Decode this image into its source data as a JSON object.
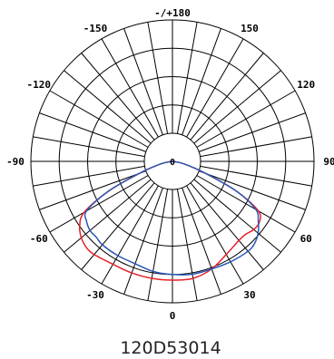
{
  "chart_data": {
    "type": "polar",
    "title": "",
    "caption": "120D53014",
    "center_label": "0",
    "angle_labels": [
      {
        "angle": 180,
        "text": "-/+180"
      },
      {
        "angle": 150,
        "text": "150"
      },
      {
        "angle": 120,
        "text": "120"
      },
      {
        "angle": 90,
        "text": "90"
      },
      {
        "angle": 60,
        "text": "60"
      },
      {
        "angle": 30,
        "text": "30"
      },
      {
        "angle": 0,
        "text": "0"
      },
      {
        "angle": -30,
        "text": "-30"
      },
      {
        "angle": -60,
        "text": "-60"
      },
      {
        "angle": -90,
        "text": "-90"
      },
      {
        "angle": -120,
        "text": "-120"
      },
      {
        "angle": -150,
        "text": "-150"
      }
    ],
    "rings": 5,
    "spoke_step_deg": 10,
    "r_range": [
      0,
      1
    ],
    "series": [
      {
        "color": "#e8202a",
        "points": [
          {
            "angle": -78,
            "r": 0.08
          },
          {
            "angle": -70,
            "r": 0.25
          },
          {
            "angle": -65,
            "r": 0.5
          },
          {
            "angle": -60,
            "r": 0.72
          },
          {
            "angle": -55,
            "r": 0.8
          },
          {
            "angle": -50,
            "r": 0.84
          },
          {
            "angle": -45,
            "r": 0.86
          },
          {
            "angle": -40,
            "r": 0.86
          },
          {
            "angle": -30,
            "r": 0.84
          },
          {
            "angle": -20,
            "r": 0.84
          },
          {
            "angle": -10,
            "r": 0.84
          },
          {
            "angle": 0,
            "r": 0.84
          },
          {
            "angle": 10,
            "r": 0.84
          },
          {
            "angle": 20,
            "r": 0.81
          },
          {
            "angle": 30,
            "r": 0.76
          },
          {
            "angle": 40,
            "r": 0.73
          },
          {
            "angle": 45,
            "r": 0.73
          },
          {
            "angle": 50,
            "r": 0.75
          },
          {
            "angle": 55,
            "r": 0.75
          },
          {
            "angle": 60,
            "r": 0.7
          },
          {
            "angle": 65,
            "r": 0.5
          },
          {
            "angle": 70,
            "r": 0.25
          },
          {
            "angle": 78,
            "r": 0.08
          }
        ]
      },
      {
        "color": "#2a58b8",
        "points": [
          {
            "angle": -78,
            "r": 0.08
          },
          {
            "angle": -70,
            "r": 0.25
          },
          {
            "angle": -65,
            "r": 0.5
          },
          {
            "angle": -60,
            "r": 0.7
          },
          {
            "angle": -55,
            "r": 0.74
          },
          {
            "angle": -50,
            "r": 0.76
          },
          {
            "angle": -45,
            "r": 0.76
          },
          {
            "angle": -40,
            "r": 0.77
          },
          {
            "angle": -30,
            "r": 0.77
          },
          {
            "angle": -20,
            "r": 0.77
          },
          {
            "angle": -10,
            "r": 0.79
          },
          {
            "angle": 0,
            "r": 0.8
          },
          {
            "angle": 10,
            "r": 0.81
          },
          {
            "angle": 20,
            "r": 0.81
          },
          {
            "angle": 30,
            "r": 0.82
          },
          {
            "angle": 40,
            "r": 0.83
          },
          {
            "angle": 45,
            "r": 0.82
          },
          {
            "angle": 50,
            "r": 0.79
          },
          {
            "angle": 55,
            "r": 0.74
          },
          {
            "angle": 60,
            "r": 0.68
          },
          {
            "angle": 65,
            "r": 0.5
          },
          {
            "angle": 70,
            "r": 0.25
          },
          {
            "angle": 78,
            "r": 0.08
          }
        ]
      }
    ]
  }
}
